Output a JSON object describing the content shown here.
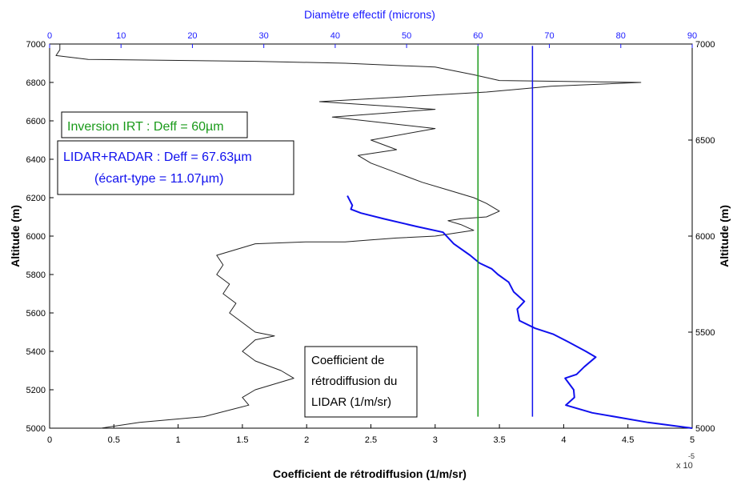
{
  "chart_data": {
    "type": "line",
    "title": "",
    "xlabel": "Coefficient de rétrodiffusion (1/m/sr)",
    "x_multiplier": "x 10",
    "x_exponent": "-5",
    "ylabel_left": "Altitude (m)",
    "ylabel_right": "Altitude (m)",
    "top_xlabel": "Diamètre effectif (microns)",
    "xlim": [
      0,
      5
    ],
    "ylim": [
      5000,
      7000
    ],
    "top_xlim": [
      0,
      90
    ],
    "x_ticks": [
      "0",
      "0.5",
      "1",
      "1.5",
      "2",
      "2.5",
      "3",
      "3.5",
      "4",
      "4.5",
      "5"
    ],
    "y_ticks_left": [
      "5000",
      "5200",
      "5400",
      "5600",
      "5800",
      "6000",
      "6200",
      "6400",
      "6600",
      "6800",
      "7000"
    ],
    "top_ticks": [
      "0",
      "10",
      "20",
      "30",
      "40",
      "50",
      "60",
      "70",
      "80",
      "90"
    ],
    "y_ticks_right": [
      "5000",
      "5500",
      "6000",
      "6500",
      "7000"
    ],
    "colors": {
      "lidar": "#222222",
      "radar": "#1010ee",
      "irt": "#1a9a1a",
      "top_axis": "#1a1aff"
    },
    "series": [
      {
        "name": "Coefficient de rétrodiffusion du LIDAR (1/m/sr)",
        "axis": "bottom",
        "x": [
          0.08,
          0.08,
          0.05,
          0.3,
          1.6,
          2.3,
          3.0,
          3.3,
          3.5,
          4.6,
          3.9,
          3.4,
          2.1,
          3.0,
          2.2,
          3.0,
          2.5,
          2.7,
          2.4,
          2.5,
          2.7,
          2.9,
          3.1,
          3.3,
          3.4,
          3.5,
          3.4,
          3.2,
          3.1,
          3.2,
          3.3,
          3.0,
          2.7,
          2.5,
          2.4,
          2.3,
          2.0,
          1.6,
          1.3,
          1.35,
          1.3,
          1.4,
          1.35,
          1.45,
          1.4,
          1.5,
          1.6,
          1.75,
          1.6,
          1.5,
          1.6,
          1.8,
          1.9,
          1.6,
          1.5,
          1.55,
          1.2,
          0.7,
          0.4
        ],
        "y": [
          7000,
          6970,
          6940,
          6920,
          6910,
          6900,
          6880,
          6840,
          6810,
          6800,
          6780,
          6750,
          6700,
          6660,
          6620,
          6560,
          6500,
          6450,
          6420,
          6380,
          6330,
          6280,
          6240,
          6200,
          6170,
          6130,
          6100,
          6090,
          6080,
          6060,
          6030,
          6000,
          5990,
          5980,
          5975,
          5970,
          5970,
          5960,
          5900,
          5850,
          5800,
          5750,
          5700,
          5650,
          5600,
          5550,
          5500,
          5480,
          5460,
          5400,
          5350,
          5300,
          5260,
          5200,
          5160,
          5120,
          5060,
          5030,
          5000
        ]
      },
      {
        "name": "Diamètre effectif LIDAR+RADAR",
        "axis": "top",
        "x": [
          41.7,
          42.4,
          42.2,
          43.6,
          46.8,
          51.4,
          55.1,
          56.6,
          58.9,
          60.2,
          61.9,
          62.8,
          64.3,
          65.0,
          66.5,
          65.5,
          65.8,
          68.0,
          70.5,
          72.6,
          75.1,
          76.5,
          74.9,
          73.8,
          72.2,
          73.4,
          73.5,
          72.3,
          76.0,
          83.8,
          90.0
        ],
        "y": [
          6210,
          6160,
          6140,
          6120,
          6090,
          6050,
          6020,
          5960,
          5900,
          5860,
          5830,
          5800,
          5760,
          5710,
          5660,
          5620,
          5560,
          5520,
          5490,
          5450,
          5400,
          5370,
          5320,
          5280,
          5260,
          5200,
          5160,
          5120,
          5080,
          5030,
          5000
        ]
      },
      {
        "name": "Inversion IRT",
        "axis": "top",
        "x": [
          60,
          60
        ],
        "y": [
          5060,
          6990
        ]
      },
      {
        "name": "LIDAR+RADAR",
        "axis": "top",
        "x": [
          67.63,
          67.63
        ],
        "y": [
          5060,
          6990
        ]
      }
    ],
    "annotations": {
      "irt": "Inversion IRT : Deff = 60µm",
      "lidar_radar_line1": "LIDAR+RADAR : Deff = 67.63µm",
      "lidar_radar_line2": "(écart-type = 11.07µm)",
      "coef_line1": "Coefficient de",
      "coef_line2": "rétrodiffusion du",
      "coef_line3": "LIDAR (1/m/sr)"
    }
  }
}
